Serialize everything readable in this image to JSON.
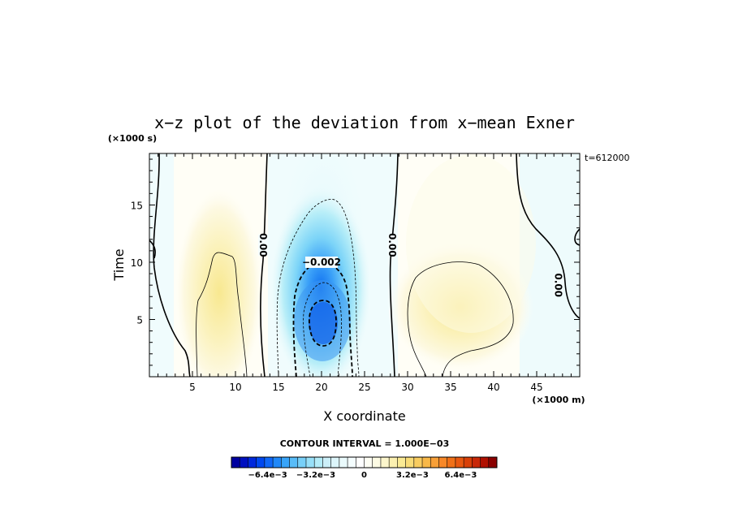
{
  "chart_data": {
    "type": "contour",
    "title": "x−z plot of the deviation from x−mean Exner",
    "xlabel": "X coordinate",
    "ylabel": "Time",
    "x_unit": "(×1000 m)",
    "y_unit": "(×1000 s)",
    "time_stamp": "t=612000",
    "xlim": [
      0,
      50
    ],
    "ylim": [
      0,
      19.5
    ],
    "xticks": [
      5,
      10,
      15,
      20,
      25,
      30,
      35,
      40,
      45
    ],
    "yticks": [
      5,
      10,
      15
    ],
    "contour_interval_text": "CONTOUR INTERVAL = 1.000E−03",
    "contour_labels": [
      {
        "text": "0.00",
        "x": 13.2,
        "y": 11.5
      },
      {
        "text": "−0.002",
        "x": 20.0,
        "y": 10.0
      },
      {
        "text": "0.00",
        "x": 28.2,
        "y": 11.5
      },
      {
        "text": "0.00",
        "x": 47.5,
        "y": 8.0
      }
    ],
    "extrema": [
      {
        "kind": "min",
        "x": 20.2,
        "y": 4.8,
        "value": -0.005
      },
      {
        "kind": "max",
        "x": 8.5,
        "y": 3.0,
        "value": 0.0015
      },
      {
        "kind": "max",
        "x": 35.5,
        "y": 5.8,
        "value": 0.0015
      }
    ],
    "colorbar": {
      "tick_labels": [
        "−6.4e−3",
        "−3.2e−3",
        "0",
        "3.2e−3",
        "6.4e−3"
      ],
      "tick_values": [
        -0.0064,
        -0.0032,
        0,
        0.0032,
        0.0064
      ],
      "range": [
        -0.0088,
        0.0088
      ],
      "colors": [
        "#0000a0",
        "#0010c0",
        "#0028dc",
        "#0048f0",
        "#1068f8",
        "#2088f8",
        "#38a4f8",
        "#58bcf8",
        "#78d0f8",
        "#98e0f8",
        "#b4ecf8",
        "#cceff8",
        "#dcf5fa",
        "#eafafc",
        "#f4fdfe",
        "#ffffff",
        "#fefef4",
        "#fdfbe4",
        "#fcf6cc",
        "#fbf0b0",
        "#faea94",
        "#f8dc78",
        "#f8cc60",
        "#f8b848",
        "#f8a038",
        "#f88828",
        "#f07018",
        "#e85810",
        "#d84008",
        "#c82808",
        "#b01000",
        "#8a0000"
      ]
    }
  }
}
